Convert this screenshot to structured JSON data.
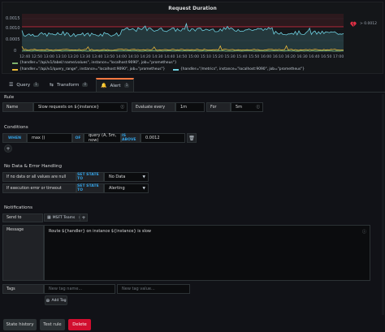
{
  "panel": {
    "title": "Request Duration",
    "alert_threshold_label": "> 0.0012",
    "y_ticks": [
      "0.0015",
      "0.0010",
      "0.0005",
      "0"
    ],
    "x_ticks": [
      "12:40",
      "12:50",
      "13:00",
      "13:10",
      "13:20",
      "13:30",
      "13:40",
      "13:50",
      "14:00",
      "14:10",
      "14:20",
      "14:30",
      "14:40",
      "14:50",
      "15:00",
      "15:10",
      "15:20",
      "15:30",
      "15:40",
      "15:50",
      "16:00",
      "16:10",
      "16:20",
      "16:30",
      "16:40",
      "16:50",
      "17:00"
    ],
    "legend": [
      {
        "label": "{handler=\"/api/v1/label/:name/values\", instance=\"localhost:9090\", job=\"prometheus\"}",
        "color": "#7eb26d"
      },
      {
        "label": "{handler=\"/api/v1/query_range\", instance=\"localhost:9090\", job=\"prometheus\"}",
        "color": "#eab839"
      },
      {
        "label": "{handler=\"/metrics\", instance=\"localhost:9090\", job=\"prometheus\"}",
        "color": "#6ed0e0"
      }
    ]
  },
  "tabs": [
    {
      "label": "Query",
      "count": "1"
    },
    {
      "label": "Transform",
      "count": "0"
    },
    {
      "label": "Alert",
      "count": "1"
    }
  ],
  "rule": {
    "heading": "Rule",
    "name_label": "Name",
    "name_value": "Slow requests on ${instance}",
    "evaluate_label": "Evaluate every",
    "evaluate_value": "1m",
    "for_label": "For",
    "for_value": "5m"
  },
  "conditions": {
    "heading": "Conditions",
    "when": "WHEN",
    "func": "max ()",
    "of": "OF",
    "query": "query (A, 5m, now)",
    "is_above": "IS ABOVE",
    "threshold": "0.0012"
  },
  "nodata": {
    "heading": "No Data & Error Handling",
    "row1_label": "If no data or all values are null",
    "row1_kw": "SET STATE TO",
    "row1_value": "No Data",
    "row2_label": "If execution error or timeout",
    "row2_kw": "SET STATE TO",
    "row2_value": "Alerting"
  },
  "notifications": {
    "heading": "Notifications",
    "send_to_label": "Send to",
    "channel": "MSFT Teams",
    "message_label": "Message",
    "message": "Route ${handler} on instance ${instance} is slow",
    "tags_label": "Tags",
    "tag_name_placeholder": "New tag name...",
    "tag_value_placeholder": "New tag value...",
    "add_tag": "Add Tag"
  },
  "footer": {
    "state_history": "State history",
    "test_rule": "Test rule",
    "delete": "Delete"
  },
  "colors": {
    "accent": "#ff7941",
    "keyword": "#33a2e5",
    "threshold": "#e02f44",
    "danger": "#d10e2f"
  }
}
